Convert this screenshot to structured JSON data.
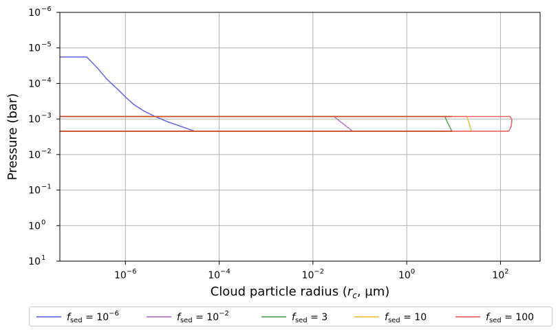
{
  "chart_data": {
    "type": "line",
    "xlabel": "Cloud particle radius (r_c, µm)",
    "xlabel_parts": {
      "before": "Cloud particle radius (",
      "var": "r",
      "sub": "c",
      "after": ", µm)"
    },
    "ylabel": "Pressure (bar)",
    "x_scale": "log",
    "y_scale": "log",
    "y_inverted": true,
    "xlim": [
      4e-08,
      700
    ],
    "ylim": [
      10,
      1e-06
    ],
    "grid": true,
    "legend_placement": "bottom-outside",
    "x_ticks": [
      {
        "value": 1e-06,
        "base": "10",
        "exp": "−6"
      },
      {
        "value": 0.0001,
        "base": "10",
        "exp": "−4"
      },
      {
        "value": 0.01,
        "base": "10",
        "exp": "−2"
      },
      {
        "value": 1,
        "base": "10",
        "exp": "0"
      },
      {
        "value": 100,
        "base": "10",
        "exp": "2"
      }
    ],
    "y_ticks": [
      {
        "value": 1e-06,
        "base": "10",
        "exp": "−6"
      },
      {
        "value": 1e-05,
        "base": "10",
        "exp": "−5"
      },
      {
        "value": 0.0001,
        "base": "10",
        "exp": "−4"
      },
      {
        "value": 0.001,
        "base": "10",
        "exp": "−3"
      },
      {
        "value": 0.01,
        "base": "10",
        "exp": "−2"
      },
      {
        "value": 0.1,
        "base": "10",
        "exp": "−1"
      },
      {
        "value": 1,
        "base": "10",
        "exp": "0"
      },
      {
        "value": 10,
        "base": "10",
        "exp": "1"
      }
    ],
    "series": [
      {
        "label_rhs": "10",
        "label_rhs_exp": "−6",
        "color": "#6b6bea",
        "x": [
          4e-08,
          1.5e-07,
          2.5e-07,
          4e-07,
          7e-07,
          1e-06,
          1.5e-06,
          2.5e-06,
          4.3e-06,
          8e-06,
          1.5e-05,
          3e-05,
          4e-08
        ],
        "y": [
          1.8e-05,
          1.8e-05,
          3.6e-05,
          7.5e-05,
          0.00015,
          0.00024,
          0.00039,
          0.0006,
          0.00085,
          0.0012,
          0.0016,
          0.0022,
          0.0022
        ]
      },
      {
        "label_rhs": "10",
        "label_rhs_exp": "−2",
        "color": "#b37ac6",
        "x": [
          4e-08,
          0.028,
          0.07,
          4e-08
        ],
        "y": [
          0.00085,
          0.00085,
          0.0022,
          0.0022
        ]
      },
      {
        "label_rhs": "3",
        "label_rhs_exp": "",
        "color": "#58a858",
        "x": [
          4e-08,
          6.5,
          7.3,
          9.2,
          4e-08
        ],
        "y": [
          0.00085,
          0.00085,
          0.0012,
          0.0022,
          0.0022
        ]
      },
      {
        "label_rhs": "10",
        "label_rhs_exp": "",
        "color": "#f2c044",
        "x": [
          4e-08,
          19,
          21,
          24,
          4e-08
        ],
        "y": [
          0.00085,
          0.00085,
          0.0012,
          0.0022,
          0.0022
        ]
      },
      {
        "label_rhs": "100",
        "label_rhs_exp": "",
        "color": "#f06464",
        "x": [
          4e-08,
          160,
          175,
          170,
          150,
          4e-08
        ],
        "y": [
          0.00085,
          0.00085,
          0.00105,
          0.0016,
          0.0022,
          0.0022
        ]
      }
    ],
    "overlay_lines": [
      {
        "color": "#c8502a",
        "x": [
          4e-08,
          9.5
        ],
        "y": [
          0.00085,
          0.00085
        ]
      },
      {
        "color": "#c8502a",
        "x": [
          4e-08,
          9.5
        ],
        "y": [
          0.0022,
          0.0022
        ]
      }
    ],
    "legend_label_var": "f",
    "legend_label_sub": "sed"
  }
}
